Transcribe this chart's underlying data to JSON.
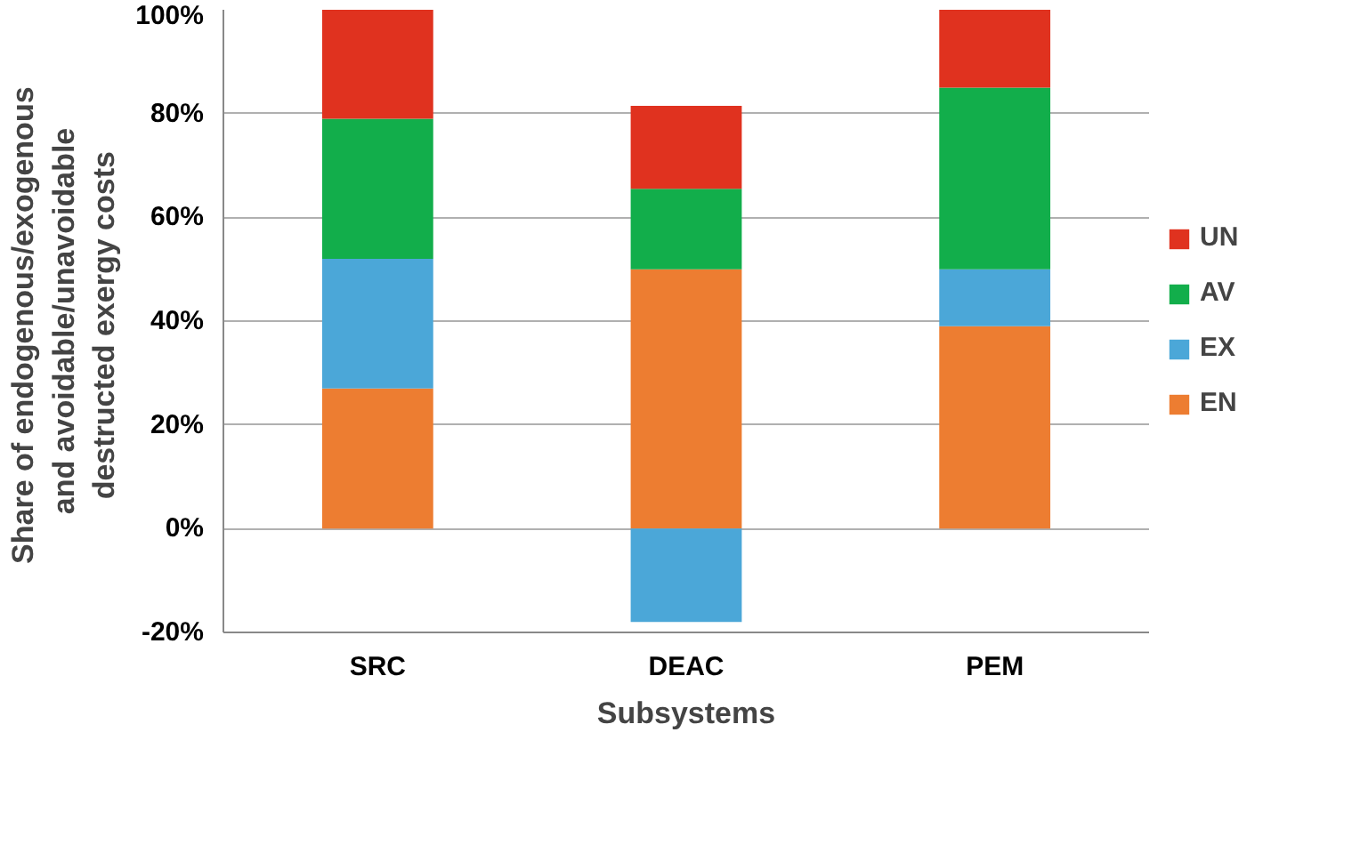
{
  "chart_data": {
    "type": "bar",
    "stacked": true,
    "xlabel": "Subsystems",
    "ylabel": "Share of  endogenous/exogenous and avoidable/unavoidable destructed exergy  costs",
    "categories": [
      "SRC",
      "DEAC",
      "PEM"
    ],
    "series": [
      {
        "name": "EN",
        "color": "#ed7d31",
        "values": [
          27,
          50,
          39
        ]
      },
      {
        "name": "EX",
        "color": "#4ba7d8",
        "values": [
          25,
          -18,
          11
        ]
      },
      {
        "name": "AV",
        "color": "#12ae4b",
        "values": [
          27,
          15.5,
          35
        ]
      },
      {
        "name": "UN",
        "color": "#e0321f",
        "values": [
          21,
          16,
          15
        ]
      }
    ],
    "ylim": [
      -20,
      100
    ],
    "yticks": [
      {
        "value": -20,
        "label": "-20%"
      },
      {
        "value": 0,
        "label": "0%"
      },
      {
        "value": 20,
        "label": "20%"
      },
      {
        "value": 40,
        "label": "40%"
      },
      {
        "value": 60,
        "label": "60%"
      },
      {
        "value": 80,
        "label": "80%"
      },
      {
        "value": 100,
        "label": "100%"
      }
    ],
    "grid": "y",
    "legend": "right"
  }
}
